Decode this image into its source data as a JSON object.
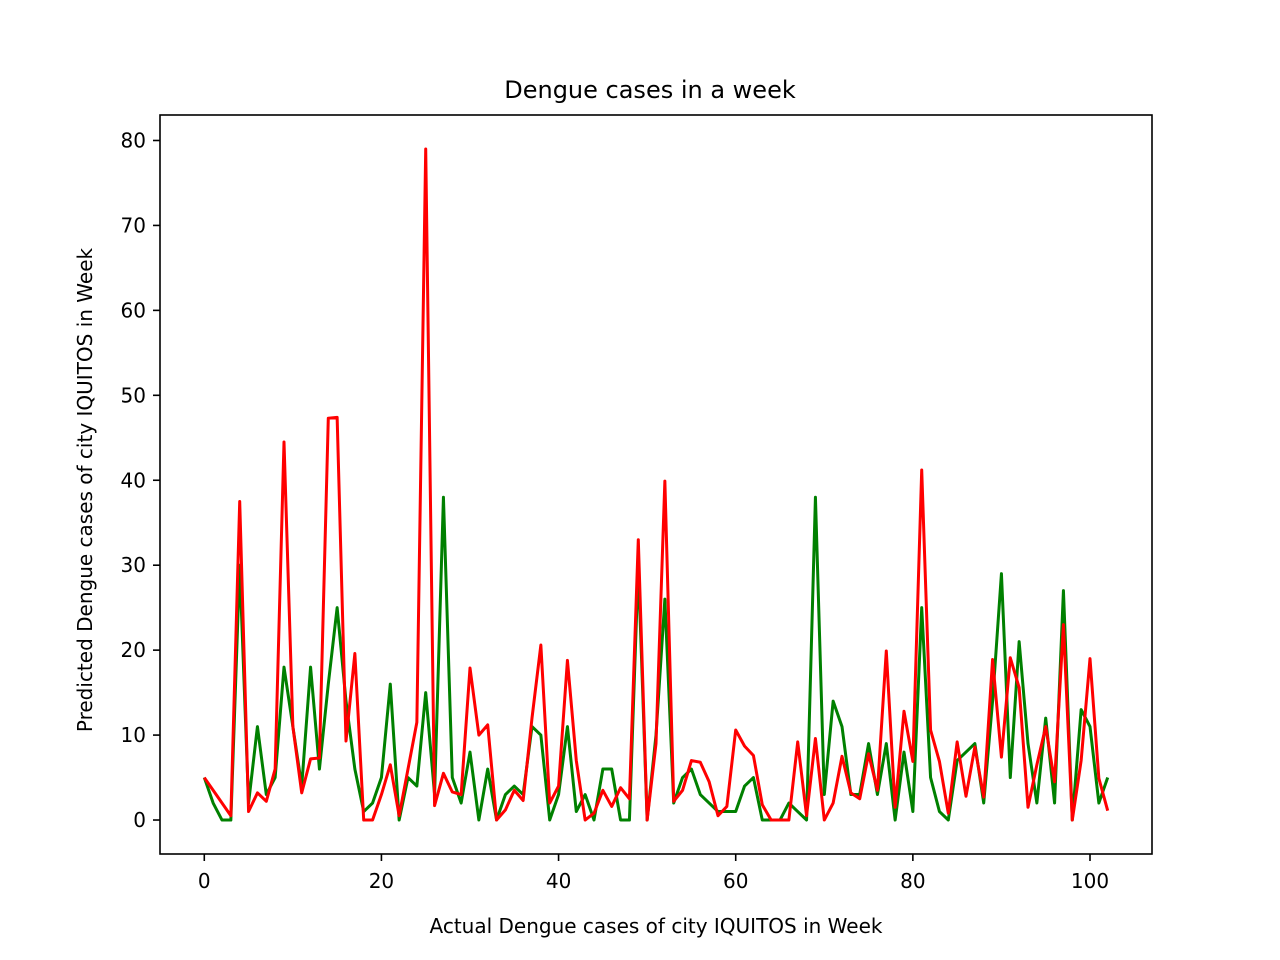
{
  "chart_data": {
    "type": "line",
    "title": "Dengue cases in a week",
    "xlabel": "Actual Dengue cases of city IQUITOS in Week",
    "ylabel": "Predicted Dengue cases of city IQUITOS in Week",
    "xlim": [
      -5,
      107
    ],
    "ylim": [
      -4,
      83
    ],
    "xticks": [
      0,
      20,
      40,
      60,
      80,
      100
    ],
    "yticks": [
      0,
      10,
      20,
      30,
      40,
      50,
      60,
      70,
      80
    ],
    "grid": false,
    "series": [
      {
        "color": "#008000",
        "x": [
          0,
          1,
          2,
          3,
          4,
          5,
          6,
          7,
          8,
          9,
          10,
          11,
          12,
          13,
          14,
          15,
          16,
          17,
          18,
          19,
          20,
          21,
          22,
          23,
          24,
          25,
          26,
          27,
          28,
          29,
          30,
          31,
          32,
          33,
          34,
          35,
          36,
          37,
          38,
          39,
          40,
          41,
          42,
          43,
          44,
          45,
          46,
          47,
          48,
          49,
          50,
          51,
          52,
          53,
          54,
          55,
          56,
          57,
          58,
          59,
          60,
          61,
          62,
          63,
          64,
          65,
          66,
          67,
          68,
          69,
          70,
          71,
          72,
          73,
          74,
          75,
          76,
          77,
          78,
          79,
          80,
          81,
          82,
          83,
          84,
          85,
          86,
          87,
          88,
          89,
          90,
          91,
          92,
          93,
          94,
          95,
          96,
          97,
          98,
          99,
          100,
          101,
          102
        ],
        "values": [
          5,
          2,
          0,
          0,
          30,
          2,
          11,
          3,
          5,
          18,
          11,
          4,
          18,
          6,
          16,
          25,
          14,
          6,
          1,
          2,
          5,
          16,
          0,
          5,
          4,
          15,
          3,
          38,
          5,
          2,
          8,
          0,
          6,
          0,
          3,
          4,
          3,
          11,
          10,
          0,
          3,
          11,
          1,
          3,
          0,
          6,
          6,
          0,
          0,
          30,
          0,
          10,
          26,
          2,
          5,
          6,
          3,
          2,
          1,
          1,
          1,
          4,
          5,
          0,
          0,
          0,
          2,
          1,
          0,
          38,
          3,
          14,
          11,
          3,
          3,
          9,
          3,
          9,
          0,
          8,
          1,
          25,
          5,
          1,
          0,
          7,
          8,
          9,
          2,
          14,
          29,
          5,
          21,
          9,
          2,
          12,
          2,
          27,
          0,
          13,
          11,
          2,
          5
        ]
      },
      {
        "color": "#ff0000",
        "x": [
          0,
          1,
          2,
          3,
          4,
          5,
          6,
          7,
          8,
          9,
          10,
          11,
          12,
          13,
          14,
          15,
          16,
          17,
          18,
          19,
          20,
          21,
          22,
          23,
          24,
          25,
          26,
          27,
          28,
          29,
          30,
          31,
          32,
          33,
          34,
          35,
          36,
          37,
          38,
          39,
          40,
          41,
          42,
          43,
          44,
          45,
          46,
          47,
          48,
          49,
          50,
          51,
          52,
          53,
          54,
          55,
          56,
          57,
          58,
          59,
          60,
          61,
          62,
          63,
          64,
          65,
          66,
          67,
          68,
          69,
          70,
          71,
          72,
          73,
          74,
          75,
          76,
          77,
          78,
          79,
          80,
          81,
          82,
          83,
          84,
          85,
          86,
          87,
          88,
          89,
          90,
          91,
          92,
          93,
          94,
          95,
          96,
          97,
          98,
          99,
          100,
          101,
          102
        ],
        "values": [
          5,
          3.5,
          2,
          0.5,
          37.5,
          1,
          3.2,
          2.2,
          6,
          44.5,
          11,
          3.2,
          7.2,
          7.3,
          47.3,
          47.4,
          9.3,
          19.6,
          0,
          0,
          3,
          6.5,
          0.5,
          6,
          11.5,
          79,
          1.7,
          5.5,
          3.3,
          3,
          17.9,
          10,
          11.2,
          0,
          1.2,
          3.5,
          2.3,
          12,
          20.6,
          2,
          4,
          18.8,
          7,
          0,
          0.8,
          3.5,
          1.6,
          3.8,
          2.5,
          33,
          0,
          9,
          39.9,
          2.2,
          3.5,
          7,
          6.8,
          4.5,
          0.5,
          1.6,
          10.6,
          8.7,
          7.6,
          1.8,
          0,
          0,
          0,
          9.2,
          0.5,
          9.6,
          0,
          2,
          7.5,
          3.2,
          2.5,
          7.8,
          3.5,
          19.9,
          1.5,
          12.8,
          6.9,
          41.2,
          10.6,
          6.9,
          0.8,
          9.2,
          2.8,
          8.6,
          2.7,
          18.9,
          7.4,
          19.1,
          15.6,
          1.5,
          6.5,
          11,
          4.5,
          23,
          0,
          7,
          19,
          4.9,
          1.1
        ]
      }
    ]
  }
}
